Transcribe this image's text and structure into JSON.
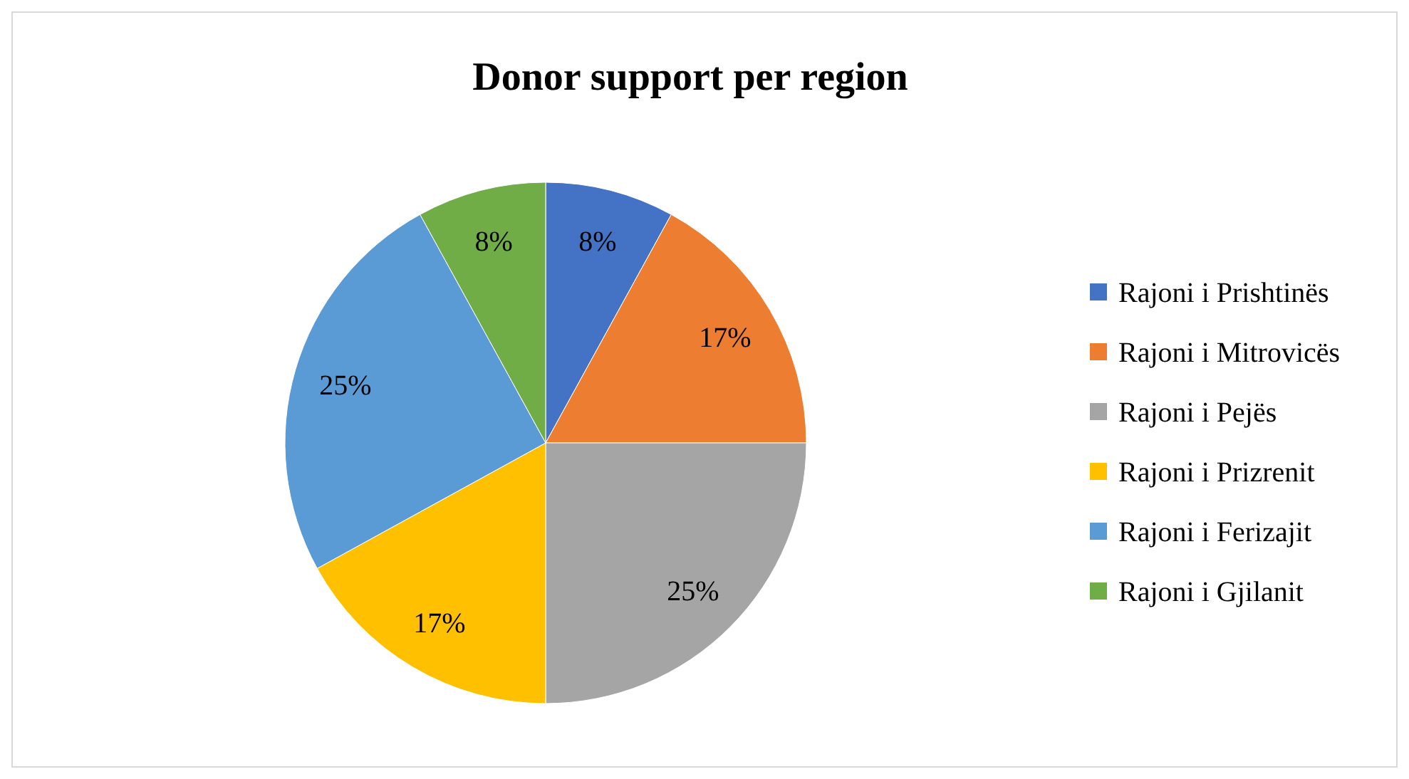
{
  "chart_data": {
    "type": "pie",
    "title": "Donor support per region",
    "categories": [
      "Rajoni i Prishtinës",
      "Rajoni i Mitrovicës",
      "Rajoni i Pejës",
      "Rajoni i Prizrenit",
      "Rajoni i Ferizajit",
      "Rajoni i Gjilanit"
    ],
    "values": [
      8,
      17,
      25,
      17,
      25,
      8
    ],
    "colors": [
      "#4472c4",
      "#ed7d31",
      "#a5a5a5",
      "#ffc000",
      "#5b9bd5",
      "#70ad47"
    ],
    "value_labels": [
      "8%",
      "17%",
      "25%",
      "17%",
      "25%",
      "8%"
    ],
    "legend": "right"
  }
}
